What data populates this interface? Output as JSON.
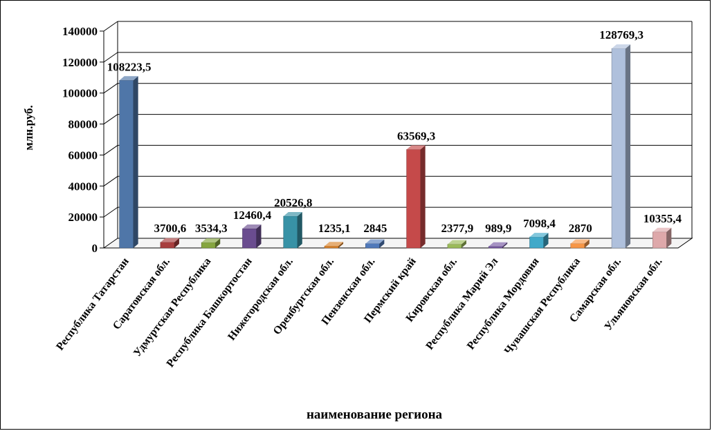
{
  "chart_data": {
    "type": "bar",
    "title": "",
    "xlabel": "наименование региона",
    "ylabel": "млн.руб.",
    "ylim": [
      0,
      140000
    ],
    "yticks": [
      "0",
      "20000",
      "40000",
      "60000",
      "80000",
      "100000",
      "120000",
      "140000"
    ],
    "grid": true,
    "legend": "none",
    "categories": [
      "Республика Татарстан",
      "Саратовская обл.",
      "Удмуртская Республика",
      "Республика Башкортостан",
      "Нижегородская обл.",
      "Оренбургская обл.",
      "Пензенская обл.",
      "Пермский край",
      "Кировская обл.",
      "Республика Марий Эл",
      "Республика Мордовия",
      "Чувашская Республика",
      "Самарская обл.",
      "Ульяновская обл."
    ],
    "values": [
      108223.5,
      3700.6,
      3534.3,
      12460.4,
      20526.8,
      1235.1,
      2845,
      63569.3,
      2377.9,
      989.9,
      7098.4,
      2870,
      128769.3,
      10355.4
    ],
    "value_labels": [
      "108223,5",
      "3700,6",
      "3534,3",
      "12460,4",
      "20526,8",
      "1235,1",
      "2845",
      "63569,3",
      "2377,9",
      "989,9",
      "7098,4",
      "2870",
      "128769,3",
      "10355,4"
    ],
    "colors": [
      "#4F76A8",
      "#A83E3E",
      "#86A63F",
      "#6A4C8F",
      "#3892A6",
      "#D9822B",
      "#5079BA",
      "#C54A4A",
      "#9BBB59",
      "#7659A2",
      "#40A9C9",
      "#F79646",
      "#AFC0DC",
      "#DEA8AA"
    ]
  }
}
